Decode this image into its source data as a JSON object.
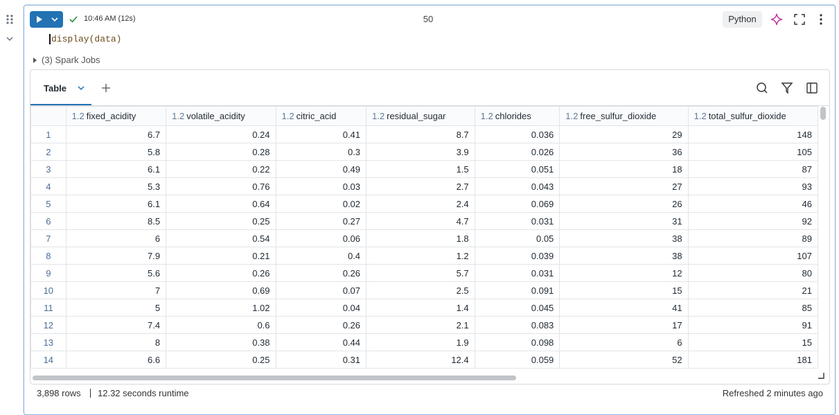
{
  "cell": {
    "time": "10:46 AM (12s)",
    "number": "50",
    "language": "Python",
    "code": "display(data)",
    "jobs": "(3) Spark Jobs"
  },
  "table": {
    "tab": "Table",
    "columns": [
      {
        "type": "1.2",
        "name": "fixed_acidity"
      },
      {
        "type": "1.2",
        "name": "volatile_acidity"
      },
      {
        "type": "1.2",
        "name": "citric_acid"
      },
      {
        "type": "1.2",
        "name": "residual_sugar"
      },
      {
        "type": "1.2",
        "name": "chlorides"
      },
      {
        "type": "1.2",
        "name": "free_sulfur_dioxide"
      },
      {
        "type": "1.2",
        "name": "total_sulfur_dioxide"
      }
    ],
    "rows": [
      [
        "1",
        "6.7",
        "0.24",
        "0.41",
        "8.7",
        "0.036",
        "29",
        "148"
      ],
      [
        "2",
        "5.8",
        "0.28",
        "0.3",
        "3.9",
        "0.026",
        "36",
        "105"
      ],
      [
        "3",
        "6.1",
        "0.22",
        "0.49",
        "1.5",
        "0.051",
        "18",
        "87"
      ],
      [
        "4",
        "5.3",
        "0.76",
        "0.03",
        "2.7",
        "0.043",
        "27",
        "93"
      ],
      [
        "5",
        "6.1",
        "0.64",
        "0.02",
        "2.4",
        "0.069",
        "26",
        "46"
      ],
      [
        "6",
        "8.5",
        "0.25",
        "0.27",
        "4.7",
        "0.031",
        "31",
        "92"
      ],
      [
        "7",
        "6",
        "0.54",
        "0.06",
        "1.8",
        "0.05",
        "38",
        "89"
      ],
      [
        "8",
        "7.9",
        "0.21",
        "0.4",
        "1.2",
        "0.039",
        "38",
        "107"
      ],
      [
        "9",
        "5.6",
        "0.26",
        "0.26",
        "5.7",
        "0.031",
        "12",
        "80"
      ],
      [
        "10",
        "7",
        "0.69",
        "0.07",
        "2.5",
        "0.091",
        "15",
        "21"
      ],
      [
        "11",
        "5",
        "1.02",
        "0.04",
        "1.4",
        "0.045",
        "41",
        "85"
      ],
      [
        "12",
        "7.4",
        "0.6",
        "0.26",
        "2.1",
        "0.083",
        "17",
        "91"
      ],
      [
        "13",
        "8",
        "0.38",
        "0.44",
        "1.9",
        "0.098",
        "6",
        "15"
      ],
      [
        "14",
        "6.6",
        "0.25",
        "0.31",
        "12.4",
        "0.059",
        "52",
        "181"
      ]
    ],
    "footer": {
      "rows": "3,898 rows",
      "runtime": "12.32 seconds runtime",
      "refreshed": "Refreshed 2 minutes ago"
    }
  }
}
